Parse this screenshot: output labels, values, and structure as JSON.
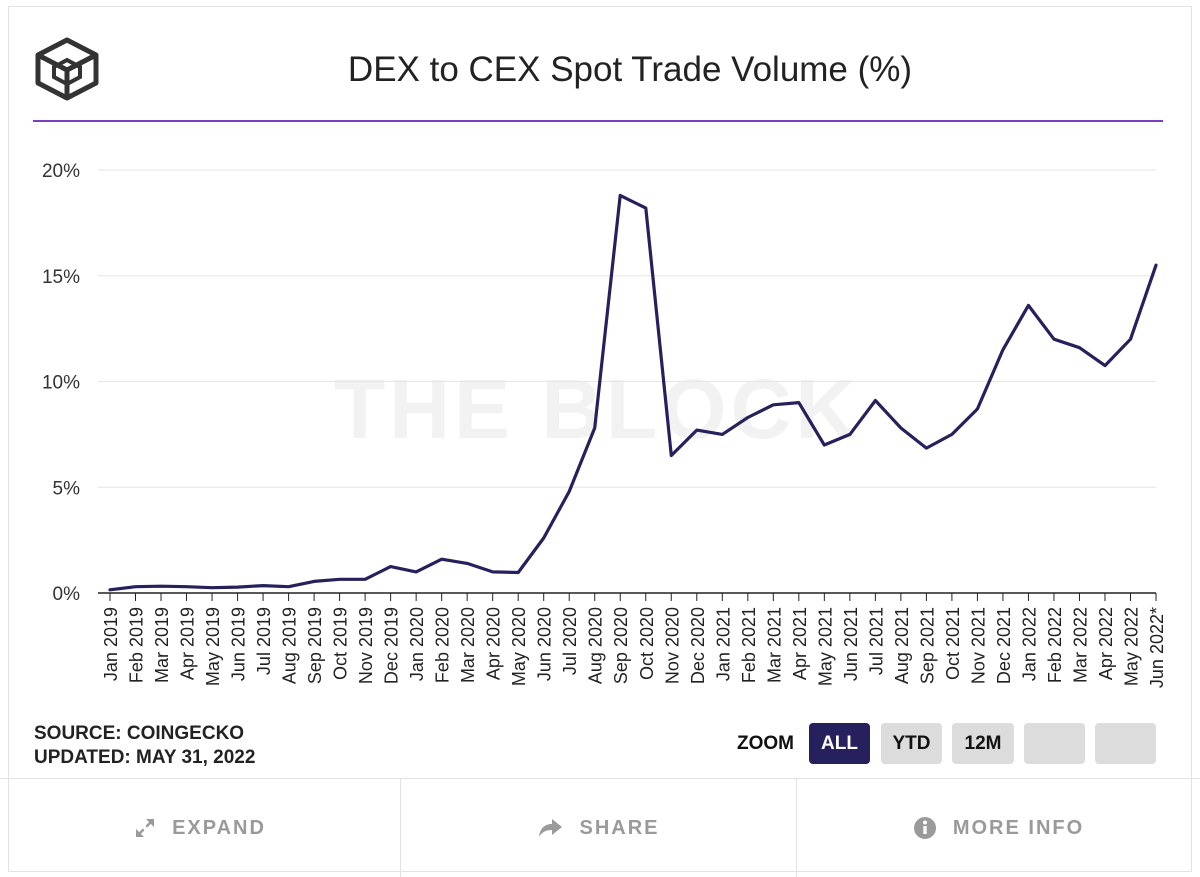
{
  "header": {
    "title": "DEX to CEX Spot Trade Volume (%)",
    "watermark": "THE BLOCK"
  },
  "source": {
    "source_line": "SOURCE: COINGECKO",
    "updated_line": "UPDATED: MAY 31, 2022"
  },
  "zoom": {
    "label": "ZOOM",
    "buttons": [
      "ALL",
      "YTD",
      "12M",
      "",
      ""
    ],
    "active": "ALL"
  },
  "footer": {
    "expand_label": "EXPAND",
    "share_label": "SHARE",
    "more_info_label": "MORE INFO"
  },
  "colors": {
    "line": "#26215c",
    "accent_rule": "#7a3fc4",
    "active_button": "#26215c"
  },
  "icons": [
    "logo-cube-icon",
    "expand-arrows-icon",
    "share-arrow-icon",
    "info-circle-icon"
  ],
  "chart_data": {
    "type": "line",
    "title": "DEX to CEX Spot Trade Volume (%)",
    "xlabel": "",
    "ylabel": "",
    "ylim": [
      0,
      20
    ],
    "yticks": [
      "0%",
      "5%",
      "10%",
      "15%",
      "20%"
    ],
    "grid": true,
    "categories": [
      "Jan 2019",
      "Feb 2019",
      "Mar 2019",
      "Apr 2019",
      "May 2019",
      "Jun 2019",
      "Jul 2019",
      "Aug 2019",
      "Sep 2019",
      "Oct 2019",
      "Nov 2019",
      "Dec 2019",
      "Jan 2020",
      "Feb 2020",
      "Mar 2020",
      "Apr 2020",
      "May 2020",
      "Jun 2020",
      "Jul 2020",
      "Aug 2020",
      "Sep 2020",
      "Oct 2020",
      "Nov 2020",
      "Dec 2020",
      "Jan 2021",
      "Feb 2021",
      "Mar 2021",
      "Apr 2021",
      "May 2021",
      "Jun 2021",
      "Jul 2021",
      "Aug 2021",
      "Sep 2021",
      "Oct 2021",
      "Nov 2021",
      "Dec 2021",
      "Jan 2022",
      "Feb 2022",
      "Mar 2022",
      "Apr 2022",
      "May 2022",
      "Jun 2022*"
    ],
    "series": [
      {
        "values": [
          0.15,
          0.3,
          0.32,
          0.3,
          0.25,
          0.28,
          0.35,
          0.3,
          0.55,
          0.65,
          0.65,
          1.25,
          1.0,
          1.6,
          1.4,
          1.0,
          0.97,
          2.6,
          4.8,
          7.8,
          18.8,
          18.2,
          6.5,
          7.7,
          7.5,
          8.3,
          8.9,
          9.0,
          7.0,
          7.5,
          9.1,
          7.8,
          6.85,
          7.5,
          8.7,
          11.5,
          13.6,
          12.0,
          11.6,
          10.75,
          12.0,
          15.5
        ]
      }
    ]
  }
}
